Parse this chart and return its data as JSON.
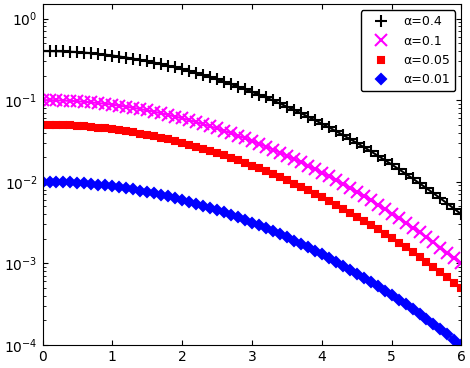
{
  "series": [
    {
      "alpha": 0.4,
      "color": "#000000",
      "marker": "+",
      "label": "α=0.4",
      "marker_size": 8,
      "marker_lw": 1.5,
      "lw": 1.5
    },
    {
      "alpha": 0.1,
      "color": "#ff00ff",
      "marker": "x",
      "label": "α=0.1",
      "marker_size": 8,
      "marker_lw": 1.5,
      "lw": 1.5
    },
    {
      "alpha": 0.05,
      "color": "#ff0000",
      "marker": "s",
      "label": "α=0.05",
      "marker_size": 5,
      "marker_lw": 1.5,
      "lw": 1.5
    },
    {
      "alpha": 0.01,
      "color": "#0000ff",
      "marker": "D",
      "label": "α=0.01",
      "marker_size": 5,
      "marker_lw": 1.5,
      "lw": 1.5
    }
  ],
  "xlim": [
    0,
    6
  ],
  "ylim": [
    0.0001,
    1.5
  ],
  "xticks": [
    0,
    1,
    2,
    3,
    4,
    5,
    6
  ],
  "ytick_vals": [
    0.0001,
    0.001,
    0.01,
    0.1,
    1.0
  ],
  "ytick_labels": [
    "10$^{-4}$",
    "10$^{-3}$",
    "10$^{-2}$",
    "10$^{-1}$",
    "10$^{0}$"
  ],
  "n_line_pts": 500,
  "n_marker_pts": 61,
  "legend_loc": "upper right",
  "legend_fontsize": 9,
  "figsize": [
    4.7,
    3.68
  ],
  "dpi": 100,
  "tick_fontsize": 10,
  "spine_color": "#000000"
}
